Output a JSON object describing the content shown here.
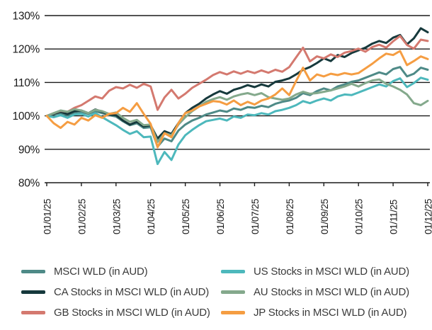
{
  "chart_data": {
    "type": "line",
    "title": "",
    "xlabel": "",
    "ylabel": "",
    "ylim": [
      80,
      130
    ],
    "ytick_step": 10,
    "ytick_labels": [
      "130%",
      "120%",
      "110%",
      "100%",
      "90%",
      "80%"
    ],
    "x_tick_labels": [
      "01/01/25",
      "01/02/25",
      "01/03/25",
      "01/04/25",
      "01/05/25",
      "01/06/25",
      "01/07/25",
      "01/08/25",
      "01/09/25",
      "01/10/25",
      "01/11/25",
      "01/12/25"
    ],
    "points_per_month": 5,
    "grid": "horizontal-solid-black",
    "legend_position": "bottom-two-columns",
    "axis_color": "#1a1a1a",
    "series": [
      {
        "name": "MSCI WLD (in AUD)",
        "color": "#4E8A87",
        "values": [
          100,
          100.4,
          100.8,
          100.2,
          101.0,
          101.2,
          100.6,
          101.4,
          100.8,
          100.2,
          99.8,
          98.4,
          97.2,
          97.8,
          96.4,
          96.6,
          90.8,
          93.2,
          92.4,
          95.6,
          97.4,
          98.6,
          99.4,
          100.4,
          101.0,
          101.6,
          101.2,
          102.2,
          101.8,
          102.6,
          102.4,
          103.0,
          102.6,
          103.6,
          104.2,
          104.6,
          105.4,
          106.8,
          106.2,
          107.4,
          108.2,
          107.6,
          108.8,
          109.4,
          110.2,
          110.6,
          111.4,
          112.2,
          113.0,
          112.4,
          114.0,
          114.6,
          111.8,
          112.6,
          114.4,
          113.8
        ]
      },
      {
        "name": "CA Stocks in MSCI WLD (in AUD)",
        "color": "#16393C",
        "values": [
          100,
          100.6,
          101.2,
          100.5,
          101.4,
          101.6,
          100.8,
          101.9,
          101.2,
          100.4,
          100.2,
          98.6,
          97.4,
          98.2,
          96.8,
          97.2,
          93.2,
          95.4,
          94.6,
          97.8,
          100.8,
          102.4,
          103.6,
          105.2,
          106.4,
          107.4,
          106.6,
          107.8,
          108.4,
          109.2,
          108.6,
          109.4,
          108.8,
          110.2,
          110.6,
          111.2,
          112.4,
          113.8,
          114.6,
          115.8,
          117.2,
          116.4,
          118.2,
          117.6,
          118.8,
          119.6,
          120.4,
          121.6,
          122.4,
          121.8,
          123.4,
          124.2,
          121.4,
          123.2,
          126.2,
          125.0
        ]
      },
      {
        "name": "GB Stocks in MSCI WLD (in AUD)",
        "color": "#D4796F",
        "values": [
          100,
          100.8,
          101.5,
          101.2,
          102.4,
          103.2,
          104.5,
          105.8,
          105.2,
          107.5,
          108.6,
          108.2,
          109.3,
          108.4,
          109.6,
          108.8,
          101.8,
          105.5,
          107.8,
          105.2,
          106.6,
          108.4,
          109.6,
          110.8,
          112.2,
          113.1,
          112.4,
          113.3,
          112.6,
          113.4,
          112.8,
          113.6,
          112.9,
          113.8,
          113.2,
          114.6,
          117.5,
          120.4,
          116.3,
          117.8,
          117.2,
          118.4,
          117.6,
          118.9,
          119.4,
          120.1,
          119.2,
          120.6,
          121.3,
          120.4,
          122.3,
          123.9,
          121.2,
          120.1,
          122.8,
          122.4
        ]
      },
      {
        "name": "US Stocks in MSCI WLD (in AUD)",
        "color": "#4DB8BC",
        "values": [
          100,
          99.6,
          100.2,
          99.4,
          100.4,
          100.6,
          99.8,
          100.8,
          99.6,
          98.4,
          97.2,
          95.8,
          94.6,
          95.4,
          93.6,
          93.8,
          85.6,
          89.2,
          86.8,
          91.4,
          94.2,
          95.8,
          97.2,
          98.4,
          98.8,
          99.2,
          98.6,
          99.8,
          99.4,
          100.4,
          100.2,
          100.8,
          100.4,
          101.4,
          101.8,
          102.4,
          103.2,
          104.4,
          103.8,
          104.6,
          105.2,
          104.6,
          105.8,
          106.4,
          106.2,
          107.0,
          107.8,
          108.6,
          109.4,
          108.8,
          110.4,
          111.2,
          108.6,
          109.8,
          111.4,
          110.8
        ]
      },
      {
        "name": "AU Stocks in MSCI WLD (in AUD)",
        "color": "#84A98C",
        "values": [
          100,
          100.8,
          101.6,
          101.2,
          102.0,
          101.6,
          100.8,
          101.8,
          101.4,
          100.6,
          101.0,
          99.4,
          98.2,
          98.8,
          97.2,
          97.4,
          92.2,
          94.8,
          94.2,
          97.4,
          99.6,
          101.4,
          102.8,
          104.2,
          105.0,
          105.6,
          104.8,
          105.8,
          106.4,
          106.8,
          106.2,
          106.8,
          105.6,
          105.2,
          104.8,
          105.2,
          106.4,
          107.2,
          106.6,
          106.8,
          107.2,
          107.6,
          108.2,
          108.8,
          109.6,
          108.8,
          109.8,
          110.6,
          110.9,
          109.6,
          108.8,
          107.8,
          106.4,
          103.8,
          103.2,
          104.5
        ]
      },
      {
        "name": "JP Stocks in MSCI WLD (in AUD)",
        "color": "#F59D42",
        "values": [
          100,
          97.8,
          96.4,
          98.2,
          97.4,
          99.4,
          98.6,
          100.2,
          99.4,
          100.6,
          100.8,
          102.4,
          101.2,
          103.8,
          100.6,
          97.6,
          90.6,
          94.8,
          93.6,
          97.8,
          100.8,
          101.6,
          102.8,
          103.6,
          104.4,
          104.2,
          103.4,
          104.6,
          103.2,
          104.2,
          103.4,
          104.6,
          105.2,
          106.4,
          108.2,
          106.2,
          110.4,
          114.4,
          110.6,
          112.4,
          111.8,
          112.6,
          112.2,
          112.8,
          112.4,
          112.8,
          114.2,
          115.6,
          117.2,
          118.6,
          118.2,
          119.4,
          115.2,
          116.4,
          117.8,
          117.0
        ]
      }
    ]
  }
}
